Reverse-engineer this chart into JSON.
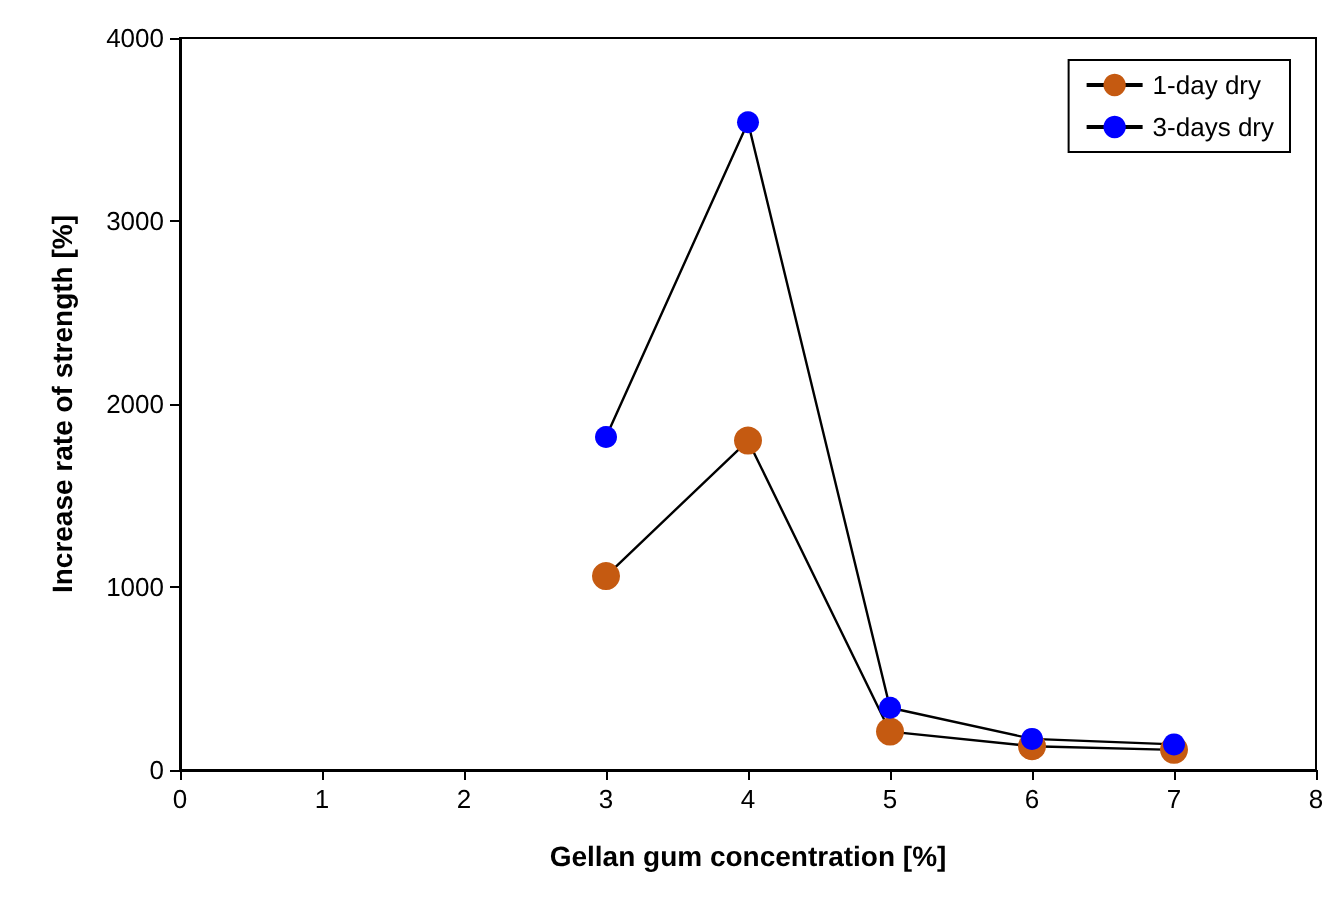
{
  "chart_data": {
    "type": "line",
    "xlabel": "Gellan gum concentration [%]",
    "ylabel": "Increase rate of strength [%]",
    "x": [
      3,
      4,
      5,
      6,
      7
    ],
    "series": [
      {
        "name": "1-day dry",
        "color": "#c55a11",
        "values": [
          1060,
          1800,
          210,
          130,
          110
        ]
      },
      {
        "name": "3-days dry",
        "color": "#0000ff",
        "values": [
          1820,
          3540,
          340,
          170,
          140
        ]
      }
    ],
    "xlim": [
      0,
      8
    ],
    "xticks": [
      0,
      1,
      2,
      3,
      4,
      5,
      6,
      7,
      8
    ],
    "ylim": [
      0,
      4000
    ],
    "yticks": [
      0,
      1000,
      2000,
      3000,
      4000
    ],
    "grid": false,
    "legend": "top right",
    "marker": "circle",
    "line_style": "solid"
  }
}
